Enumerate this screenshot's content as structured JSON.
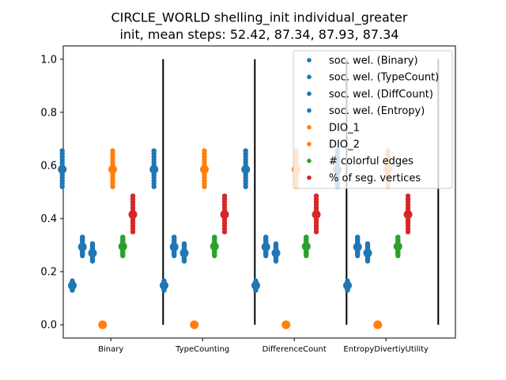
{
  "chart_data": {
    "type": "scatter",
    "title": "CIRCLE_WORLD shelling_init individual_greater",
    "subtitle": "init, mean steps: 52.42, 87.34, 87.93, 87.34",
    "xlabel": "",
    "ylabel": "",
    "ylim": [
      -0.05,
      1.05
    ],
    "yticks": [
      "0.0",
      "0.2",
      "0.4",
      "0.6",
      "0.8",
      "1.0"
    ],
    "categories": [
      "Binary",
      "TypeCounting",
      "DifferenceCount",
      "EntropyDivertiyUtility"
    ],
    "legend_position": "top-right",
    "series": [
      {
        "name": "soc. wel. (Binary)",
        "color": "#1f77b4",
        "offset": -0.33,
        "low": 0.52,
        "high": 0.655,
        "mean": 0.585
      },
      {
        "name": "soc. wel. (TypeCount)",
        "color": "#1f77b4",
        "offset": -0.22,
        "low": 0.13,
        "high": 0.165,
        "mean": 0.148
      },
      {
        "name": "soc. wel. (DiffCount)",
        "color": "#1f77b4",
        "offset": -0.11,
        "low": 0.26,
        "high": 0.33,
        "mean": 0.293
      },
      {
        "name": "soc. wel. (Entropy)",
        "color": "#1f77b4",
        "offset": 0.0,
        "low": 0.24,
        "high": 0.305,
        "mean": 0.27
      },
      {
        "name": "DIO_1",
        "color": "#ff7f0e",
        "offset": 0.11,
        "low": 0.0,
        "high": 0.0,
        "mean": 0.0
      },
      {
        "name": "DIO_2",
        "color": "#ff7f0e",
        "offset": 0.22,
        "low": 0.52,
        "high": 0.655,
        "mean": 0.585
      },
      {
        "name": "# colorful edges",
        "color": "#2ca02c",
        "offset": 0.33,
        "low": 0.26,
        "high": 0.33,
        "mean": 0.295
      },
      {
        "name": "% of seg. vertices",
        "color": "#d62728",
        "offset": 0.44,
        "low": 0.35,
        "high": 0.485,
        "mean": 0.415
      }
    ],
    "separator_lines": {
      "from": 0.0,
      "to": 1.0,
      "color": "#000000"
    }
  }
}
